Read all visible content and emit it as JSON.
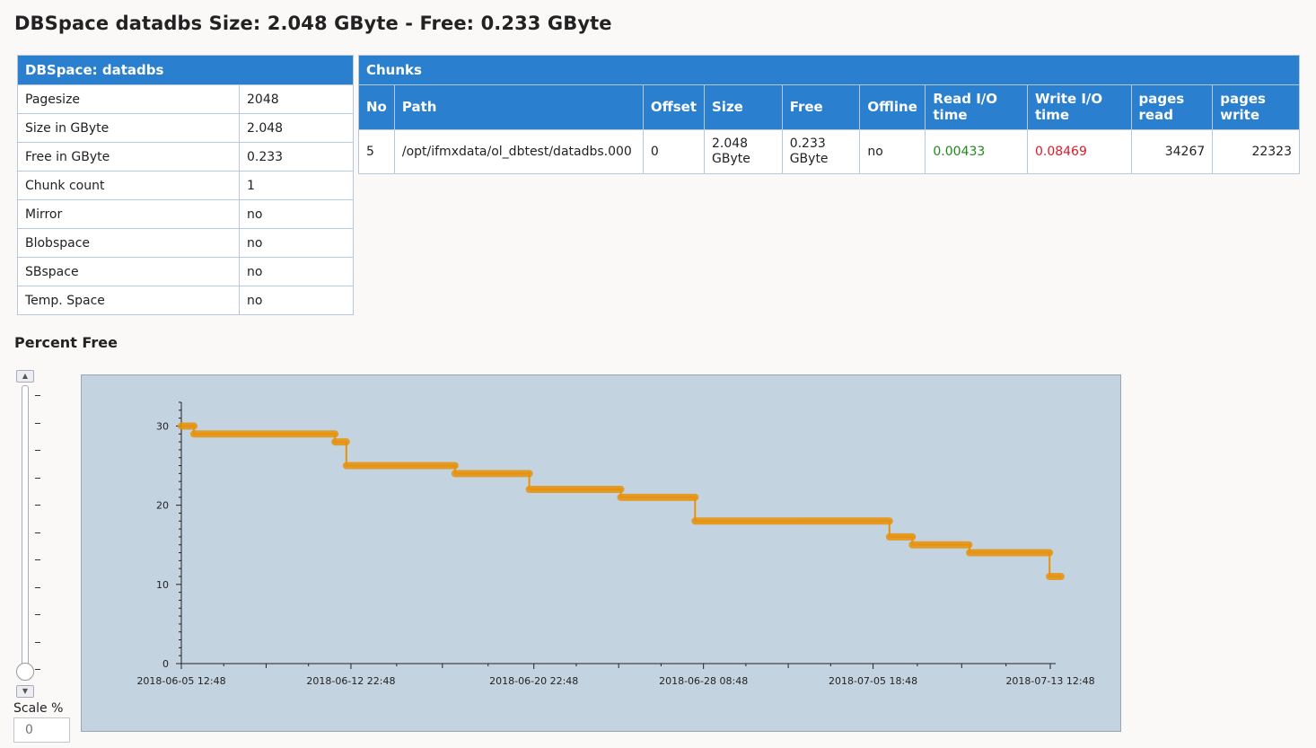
{
  "page": {
    "title": "DBSpace datadbs Size: 2.048 GByte - Free: 0.233 GByte"
  },
  "dbspace": {
    "header": "DBSpace: datadbs",
    "rows": [
      {
        "label": "Pagesize",
        "value": "2048"
      },
      {
        "label": "Size in GByte",
        "value": "2.048"
      },
      {
        "label": "Free in GByte",
        "value": "0.233"
      },
      {
        "label": "Chunk count",
        "value": "1"
      },
      {
        "label": "Mirror",
        "value": "no"
      },
      {
        "label": "Blobspace",
        "value": "no"
      },
      {
        "label": "SBspace",
        "value": "no"
      },
      {
        "label": "Temp. Space",
        "value": "no"
      }
    ]
  },
  "chunks": {
    "header": "Chunks",
    "columns": [
      "No",
      "Path",
      "Offset",
      "Size",
      "Free",
      "Offline",
      "Read I/O time",
      "Write I/O time",
      "pages read",
      "pages write"
    ],
    "row": {
      "no": "5",
      "path": "/opt/ifmxdata/ol_dbtest/datadbs.000",
      "offset": "0",
      "size": "2.048 GByte",
      "free": "0.233 GByte",
      "offline": "no",
      "read_io_time": "0.00433",
      "write_io_time": "0.08469",
      "pages_read": "34267",
      "pages_write": "22323"
    }
  },
  "colors": {
    "header_bg": "#2a7fcf",
    "read_io": "#1e8a1e",
    "write_io": "#e0192a",
    "series": "#e8920a",
    "chart_bg": "#c4d3e0"
  },
  "percent_free_section": {
    "title": "Percent Free",
    "scale_label": "Scale %",
    "scale_placeholder": "0",
    "slider_up_icon": "triangle-up",
    "slider_down_icon": "triangle-down",
    "slider_level": 0
  },
  "chart_data": {
    "type": "line",
    "title": "",
    "xlabel": "",
    "ylabel": "",
    "ylim": [
      0,
      33
    ],
    "y_ticks": [
      0,
      10,
      20,
      30
    ],
    "x_ticks": [
      "2018-06-05 12:48",
      "2018-06-12 22:48",
      "2018-06-20 22:48",
      "2018-06-28 08:48",
      "2018-07-05 18:48",
      "2018-07-13 12:48"
    ],
    "xlim": [
      "2018-06-05 12:48",
      "2018-07-13 12:48"
    ],
    "grid": false,
    "series": [
      {
        "points": [
          [
            "2018-06-05 12:48",
            30
          ],
          [
            "2018-06-06 02:00",
            30
          ],
          [
            "2018-06-06 02:00",
            29
          ],
          [
            "2018-06-12 06:00",
            29
          ],
          [
            "2018-06-12 06:00",
            28
          ],
          [
            "2018-06-12 18:00",
            28
          ],
          [
            "2018-06-12 18:00",
            25
          ],
          [
            "2018-06-17 12:00",
            25
          ],
          [
            "2018-06-17 12:00",
            24
          ],
          [
            "2018-06-20 18:00",
            24
          ],
          [
            "2018-06-20 18:00",
            22
          ],
          [
            "2018-06-24 18:00",
            22
          ],
          [
            "2018-06-24 18:00",
            21
          ],
          [
            "2018-06-28 00:00",
            21
          ],
          [
            "2018-06-28 00:00",
            18
          ],
          [
            "2018-07-06 12:00",
            18
          ],
          [
            "2018-07-06 12:00",
            16
          ],
          [
            "2018-07-07 12:00",
            16
          ],
          [
            "2018-07-07 12:00",
            15
          ],
          [
            "2018-07-10 00:00",
            15
          ],
          [
            "2018-07-10 00:00",
            14
          ],
          [
            "2018-07-13 12:00",
            14
          ],
          [
            "2018-07-13 12:00",
            11
          ],
          [
            "2018-07-14 00:00",
            11
          ]
        ]
      }
    ]
  }
}
